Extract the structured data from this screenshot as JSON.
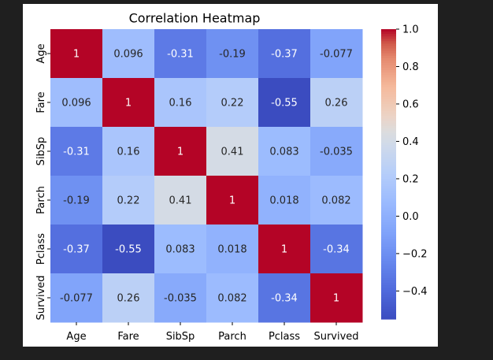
{
  "chart_data": {
    "type": "heatmap",
    "title": "Correlation Heatmap",
    "labels": [
      "Age",
      "Fare",
      "SibSp",
      "Parch",
      "Pclass",
      "Survived"
    ],
    "matrix": [
      [
        1,
        0.096,
        -0.31,
        -0.19,
        -0.37,
        -0.077
      ],
      [
        0.096,
        1,
        0.16,
        0.22,
        -0.55,
        0.26
      ],
      [
        -0.31,
        0.16,
        1,
        0.41,
        0.083,
        -0.035
      ],
      [
        -0.19,
        0.22,
        0.41,
        1,
        0.018,
        0.082
      ],
      [
        -0.37,
        -0.55,
        0.083,
        0.018,
        1,
        -0.34
      ],
      [
        -0.077,
        0.26,
        -0.035,
        0.082,
        -0.34,
        1
      ]
    ],
    "cell_labels": [
      [
        "1",
        "0.096",
        "-0.31",
        "-0.19",
        "-0.37",
        "-0.077"
      ],
      [
        "0.096",
        "1",
        "0.16",
        "0.22",
        "-0.55",
        "0.26"
      ],
      [
        "-0.31",
        "0.16",
        "1",
        "0.41",
        "0.083",
        "-0.035"
      ],
      [
        "-0.19",
        "0.22",
        "0.41",
        "1",
        "0.018",
        "0.082"
      ],
      [
        "-0.37",
        "-0.55",
        "0.083",
        "0.018",
        "1",
        "-0.34"
      ],
      [
        "-0.077",
        "0.26",
        "-0.035",
        "0.082",
        "-0.34",
        "1"
      ]
    ],
    "colormap": "coolwarm",
    "vmin": -0.55,
    "vmax": 1,
    "colorbar_ticks": [
      1.0,
      0.8,
      0.6,
      0.4,
      0.2,
      0.0,
      -0.2,
      -0.4
    ],
    "colorbar_tick_labels": [
      "1.0",
      "0.8",
      "0.6",
      "0.4",
      "0.2",
      "0.0",
      "−0.2",
      "−0.4"
    ]
  }
}
